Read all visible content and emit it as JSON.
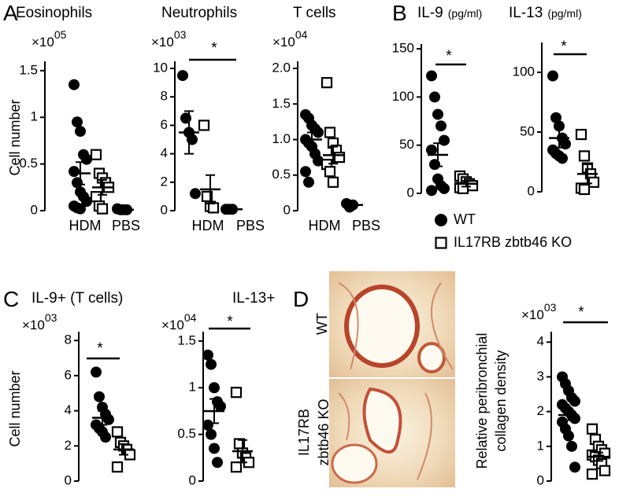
{
  "chart_data": [
    {
      "type": "dot",
      "panel": "A",
      "title": "Eosinophils",
      "multiplier": "×10",
      "exponent": "05",
      "ylabel": "Cell number",
      "ylim": [
        0,
        1.6
      ],
      "yticks": [
        0,
        0.5,
        1,
        1.5
      ],
      "categories": [
        {
          "label": "HDM",
          "groups": [
            {
              "marker": "circle",
              "values": [
                1.35,
                0.95,
                0.85,
                0.6,
                0.55,
                0.42,
                0.3,
                0.2,
                0.15,
                0.1,
                0.05,
                0.03,
                0.02
              ],
              "mean": 0.4,
              "sem": 0.12
            },
            {
              "marker": "square",
              "values": [
                0.6,
                0.4,
                0.35,
                0.3,
                0.25,
                0.15,
                0.05,
                0.02
              ],
              "mean": 0.25,
              "sem": 0.08
            }
          ]
        },
        {
          "label": "PBS",
          "groups": [
            {
              "marker": "circle",
              "values": [
                0.02,
                0.01,
                0.01,
                0.01
              ],
              "mean": 0.01,
              "sem": 0.003
            }
          ]
        }
      ]
    },
    {
      "type": "dot",
      "title": "Neutrophils",
      "multiplier": "×10",
      "exponent": "03",
      "significance": "*",
      "ylim": [
        0,
        10.5
      ],
      "yticks": [
        0,
        2,
        4,
        6,
        8,
        10
      ],
      "categories": [
        {
          "label": "HDM",
          "groups": [
            {
              "marker": "circle",
              "values": [
                9.5,
                6.5,
                5.5,
                5,
                1.2
              ],
              "mean": 5.5,
              "sem": 1.5
            },
            {
              "marker": "square",
              "values": [
                6,
                1,
                0.3,
                0.2
              ],
              "mean": 1.5,
              "sem": 1
            }
          ]
        },
        {
          "label": "PBS",
          "groups": [
            {
              "marker": "circle",
              "values": [
                0.1,
                0.1,
                0.1
              ],
              "mean": 0.1,
              "sem": 0.02
            }
          ]
        }
      ]
    },
    {
      "type": "dot",
      "title": "T cells",
      "multiplier": "×10",
      "exponent": "04",
      "ylim": [
        0,
        2.1
      ],
      "yticks": [
        0,
        0.5,
        {
          "value": 1,
          "label": "1.0"
        },
        {
          "value": 1.5,
          "label": "1.5"
        },
        {
          "value": 2,
          "label": "2.0"
        }
      ],
      "categories": [
        {
          "label": "HDM",
          "groups": [
            {
              "marker": "circle",
              "values": [
                1.35,
                1.3,
                1.2,
                1.15,
                1.1,
                1.0,
                0.95,
                0.9,
                0.8,
                0.7,
                0.55,
                0.4
              ],
              "mean": 1.0,
              "sem": 0.1
            },
            {
              "marker": "square",
              "values": [
                1.8,
                1.1,
                0.95,
                0.85,
                0.75,
                0.65,
                0.55,
                0.4
              ],
              "mean": 0.78,
              "sem": 0.12
            }
          ]
        },
        {
          "label": "PBS",
          "groups": [
            {
              "marker": "circle",
              "values": [
                0.1,
                0.05,
                0.08
              ],
              "mean": 0.08,
              "sem": 0.02
            }
          ]
        }
      ]
    },
    {
      "type": "dot",
      "panel": "B",
      "title": "IL-9",
      "unit": "(pg/ml)",
      "significance": "*",
      "ylim": [
        0,
        155
      ],
      "yticks": [
        0,
        50,
        100,
        150
      ],
      "groups": [
        {
          "marker": "circle",
          "values": [
            122,
            100,
            82,
            70,
            55,
            45,
            30,
            15,
            8,
            5,
            3
          ],
          "mean": 40,
          "sem": 12
        },
        {
          "marker": "square",
          "values": [
            18,
            15,
            12,
            10,
            8,
            6,
            5
          ],
          "mean": 10,
          "sem": 3
        }
      ],
      "legend": [
        {
          "label": "WT",
          "marker": "circle"
        },
        {
          "label": "IL17RB zbtb46 KO",
          "marker": "square"
        }
      ]
    },
    {
      "type": "dot",
      "title": "IL-13",
      "unit": "(pg/ml)",
      "significance": "*",
      "ylim": [
        0,
        125
      ],
      "yticks": [
        0,
        50,
        100
      ],
      "groups": [
        {
          "marker": "circle",
          "values": [
            97,
            62,
            55,
            45,
            40,
            35,
            32,
            30,
            28
          ],
          "mean": 45,
          "sem": 8
        },
        {
          "marker": "square",
          "values": [
            48,
            30,
            20,
            15,
            8,
            3,
            2
          ],
          "mean": 15,
          "sem": 8
        }
      ]
    },
    {
      "type": "dot",
      "panel": "C",
      "title": "IL-9+ (T cells)",
      "multiplier": "×10",
      "exponent": "03",
      "ylabel": "Cell number",
      "significance": "*",
      "ylim": [
        0,
        8.5
      ],
      "yticks": [
        0,
        2,
        4,
        6,
        8
      ],
      "groups": [
        {
          "marker": "circle",
          "values": [
            6.2,
            4.8,
            4.2,
            3.8,
            3.5,
            3.2,
            3.0,
            2.8,
            2.5
          ],
          "mean": 3.6,
          "sem": 0.4
        },
        {
          "marker": "square",
          "values": [
            2.8,
            2.2,
            2.0,
            1.8,
            1.5,
            0.8
          ],
          "mean": 1.8,
          "sem": 0.3
        }
      ]
    },
    {
      "type": "dot",
      "title": "IL-13+",
      "multiplier": "×10",
      "exponent": "04",
      "significance": "*",
      "ylim": [
        0,
        1.6
      ],
      "yticks": [
        0,
        0.5,
        1,
        1.5
      ],
      "groups": [
        {
          "marker": "circle",
          "values": [
            1.35,
            1.25,
            1.0,
            0.85,
            0.8,
            0.6,
            0.5,
            0.35,
            0.2
          ],
          "mean": 0.75,
          "sem": 0.13
        },
        {
          "marker": "square",
          "values": [
            0.95,
            0.4,
            0.3,
            0.25,
            0.2,
            0.15
          ],
          "mean": 0.32,
          "sem": 0.12
        }
      ]
    },
    {
      "type": "dot",
      "panel": "D",
      "multiplier": "×10",
      "exponent": "03",
      "ylabel": [
        "Relative peribronchial",
        "collagen density"
      ],
      "significance": "*",
      "ylim": [
        0,
        4.3
      ],
      "yticks": [
        0,
        1,
        2,
        3,
        4
      ],
      "groups": [
        {
          "marker": "circle",
          "values": [
            3.0,
            2.8,
            2.6,
            2.4,
            2.3,
            2.2,
            2.1,
            2.0,
            1.9,
            1.8,
            1.7,
            1.5,
            1.3,
            1.0,
            0.4
          ],
          "mean": 1.9,
          "sem": 0.15
        },
        {
          "marker": "square",
          "values": [
            1.5,
            1.2,
            1.0,
            0.9,
            0.8,
            0.75,
            0.7,
            0.6,
            0.5,
            0.3,
            0.2
          ],
          "mean": 0.7,
          "sem": 0.12
        }
      ]
    }
  ],
  "histology": [
    {
      "label_lines": [
        "WT"
      ]
    },
    {
      "label_lines": [
        "IL17RB",
        "zbtb46 KO"
      ]
    }
  ]
}
